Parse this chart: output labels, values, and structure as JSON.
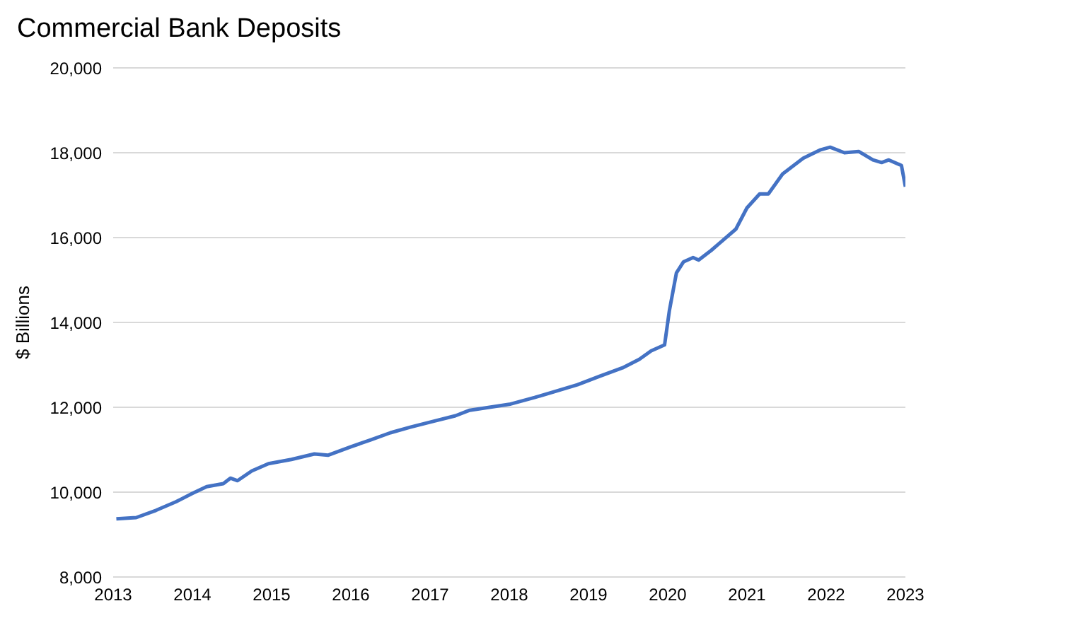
{
  "chart_data": {
    "type": "line",
    "title": "Commercial Bank Deposits",
    "ylabel": "$ Billions",
    "x": [
      2013.04,
      2013.29,
      2013.54,
      2013.79,
      2014.0,
      2014.18,
      2014.39,
      2014.48,
      2014.57,
      2014.75,
      2014.96,
      2015.25,
      2015.54,
      2015.71,
      2016.0,
      2016.25,
      2016.5,
      2016.75,
      2017.04,
      2017.32,
      2017.5,
      2017.75,
      2018.0,
      2018.32,
      2018.57,
      2018.86,
      2019.14,
      2019.43,
      2019.64,
      2019.79,
      2019.96,
      2020.02,
      2020.11,
      2020.2,
      2020.32,
      2020.39,
      2020.55,
      2020.86,
      2021.0,
      2021.16,
      2021.27,
      2021.45,
      2021.71,
      2021.93,
      2022.05,
      2022.23,
      2022.41,
      2022.59,
      2022.7,
      2022.79,
      2022.95,
      2023.0
    ],
    "series": [
      {
        "color": "#4472c4",
        "values": [
          9370,
          9400,
          9570,
          9770,
          9970,
          10130,
          10200,
          10330,
          10270,
          10500,
          10670,
          10770,
          10900,
          10870,
          11070,
          11230,
          11400,
          11530,
          11670,
          11800,
          11930,
          12000,
          12070,
          12230,
          12370,
          12530,
          12730,
          12930,
          13130,
          13330,
          13470,
          14270,
          15170,
          15430,
          15530,
          15470,
          15700,
          16200,
          16700,
          17030,
          17030,
          17500,
          17870,
          18070,
          18130,
          18000,
          18030,
          17830,
          17770,
          17830,
          17700,
          17200
        ]
      }
    ],
    "xlim": [
      2013,
      2023
    ],
    "xticks": [
      2013,
      2014,
      2015,
      2016,
      2017,
      2018,
      2019,
      2020,
      2021,
      2022,
      2023
    ],
    "ylim": [
      8000,
      20000
    ],
    "yticks": [
      {
        "value": 8000,
        "label": "8,000"
      },
      {
        "value": 10000,
        "label": "10,000"
      },
      {
        "value": 12000,
        "label": "12,000"
      },
      {
        "value": 14000,
        "label": "14,000"
      },
      {
        "value": 16000,
        "label": "16,000"
      },
      {
        "value": 18000,
        "label": "18,000"
      },
      {
        "value": 20000,
        "label": "20,000"
      }
    ],
    "grid": "y",
    "legend": false,
    "marker": "none",
    "line_style": "solid"
  }
}
